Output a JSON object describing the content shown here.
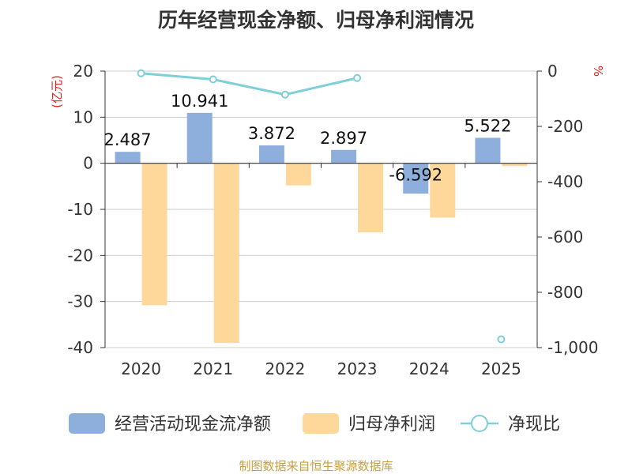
{
  "chart_data": {
    "type": "bar",
    "title": "历年经营现金净额、归母净利润情况",
    "left_axis": {
      "unit": "(亿元)",
      "ylim": [
        -40,
        20
      ],
      "ticks": [
        20,
        10,
        0,
        -10,
        -20,
        -30,
        -40
      ],
      "tick_labels": [
        "20",
        "10",
        "0",
        "-10",
        "-20",
        "-30",
        "-40"
      ]
    },
    "right_axis": {
      "unit": "%",
      "ylim": [
        -1000,
        0
      ],
      "ticks": [
        0,
        -200,
        -400,
        -600,
        -800,
        -1000
      ],
      "tick_labels": [
        "0",
        "-200",
        "-400",
        "-600",
        "-800",
        "-1,000"
      ]
    },
    "categories": [
      "2020",
      "2021",
      "2022",
      "2023",
      "2024",
      "2025"
    ],
    "series": [
      {
        "name": "经营活动现金流净额",
        "type": "bar",
        "axis": "left",
        "color": "#8eaedc",
        "values": [
          2.487,
          10.941,
          3.872,
          2.897,
          -6.592,
          5.522
        ],
        "labels": [
          "2.487",
          "10.941",
          "3.872",
          "2.897",
          "-6.592",
          "5.522"
        ]
      },
      {
        "name": "归母净利润",
        "type": "bar",
        "axis": "left",
        "color": "#fdd89a",
        "values": [
          -30.8,
          -39.0,
          -4.8,
          -15.0,
          -11.8,
          -0.6
        ]
      },
      {
        "name": "净现比",
        "type": "line",
        "axis": "right",
        "color": "#7fcfd8",
        "values": [
          -8,
          -30,
          -85,
          -25,
          null,
          -970
        ]
      }
    ],
    "grid": true,
    "legend_position": "bottom"
  },
  "source": "制图数据来自恒生聚源数据库",
  "colors": {
    "title": "#333333",
    "axis_text": "#333333",
    "unit": "#e02020",
    "grid": "#cccccc",
    "source": "#c8a040"
  }
}
